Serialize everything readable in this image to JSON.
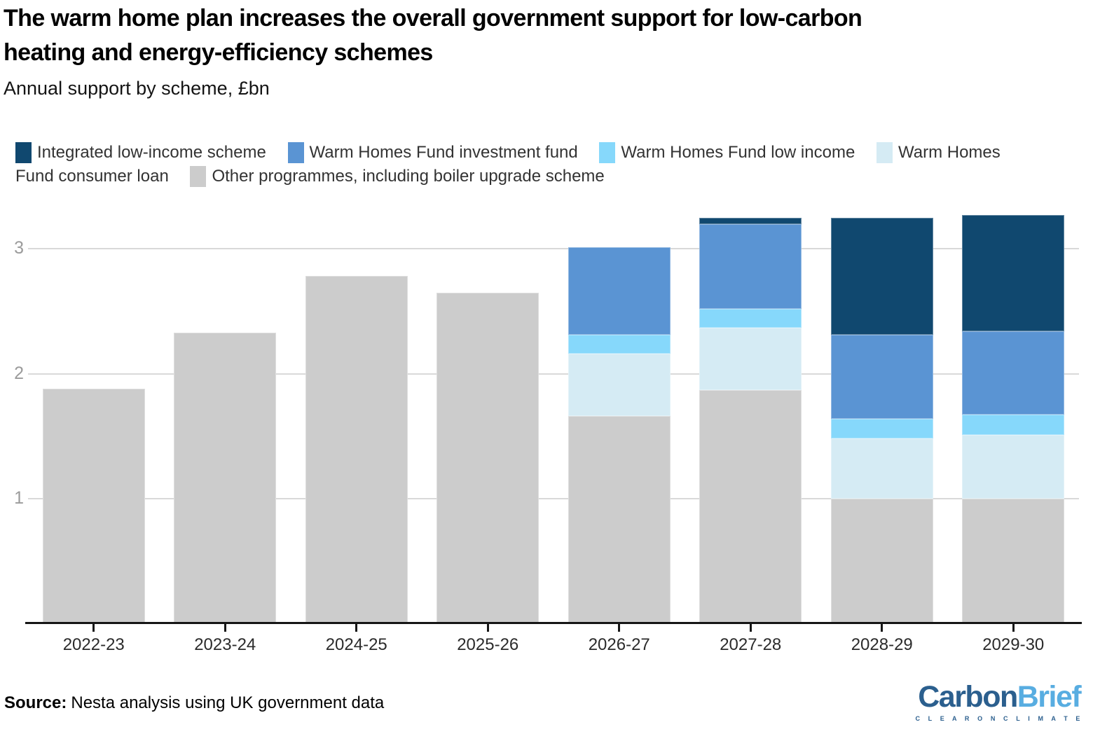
{
  "header": {
    "title": "The warm home plan increases the overall government support for low-carbon heating and energy-efficiency schemes",
    "subtitle": "Annual support by scheme, £bn"
  },
  "legend": {
    "items": [
      {
        "label": "Integrated low-income scheme",
        "color": "#10486f"
      },
      {
        "label": "Warm Homes Fund investment fund",
        "color": "#5a94d3"
      },
      {
        "label": "Warm Homes Fund low income",
        "color": "#86d8fb"
      },
      {
        "label": "Warm Homes Fund consumer loan",
        "color": "#d5ebf4"
      },
      {
        "label": "Other programmes, including boiler upgrade scheme",
        "color": "#cccccc"
      }
    ]
  },
  "chart_data": {
    "type": "bar",
    "stacked": true,
    "title": "The warm home plan increases the overall government support for low-carbon heating and energy-efficiency schemes",
    "subtitle": "Annual support by scheme, £bn",
    "ylabel": "£bn",
    "categories": [
      "2022-23",
      "2023-24",
      "2024-25",
      "2025-26",
      "2026-27",
      "2027-28",
      "2028-29",
      "2029-30"
    ],
    "series": [
      {
        "name": "Other programmes, including boiler upgrade scheme",
        "color": "#cccccc",
        "values": [
          1.88,
          2.33,
          2.78,
          2.65,
          1.66,
          1.87,
          1.0,
          1.0
        ]
      },
      {
        "name": "Warm Homes Fund consumer loan",
        "color": "#d5ebf4",
        "values": [
          0,
          0,
          0,
          0,
          0.5,
          0.5,
          0.48,
          0.51
        ]
      },
      {
        "name": "Warm Homes Fund low income",
        "color": "#86d8fb",
        "values": [
          0,
          0,
          0,
          0,
          0.15,
          0.15,
          0.16,
          0.16
        ]
      },
      {
        "name": "Warm Homes Fund investment fund",
        "color": "#5a94d3",
        "values": [
          0,
          0,
          0,
          0,
          0.7,
          0.68,
          0.67,
          0.67
        ]
      },
      {
        "name": "Integrated low-income scheme",
        "color": "#10486f",
        "values": [
          0,
          0,
          0,
          0,
          0,
          0.05,
          0.94,
          0.93
        ]
      }
    ],
    "yticks": [
      1,
      2,
      3
    ],
    "ylim": [
      0,
      3.31
    ],
    "grid": "horizontal",
    "legend_position": "top",
    "gridline_color": "#d9d9d9",
    "axis_color": "#161616"
  },
  "footer": {
    "source_label": "Source:",
    "source_text": "Nesta analysis using UK government data"
  },
  "logo": {
    "part1": "Carbon",
    "part2": "Brief",
    "tagline": "C L E A R   O N   C L I M A T E",
    "color1": "#2b5f8e",
    "color2": "#58ade1"
  }
}
